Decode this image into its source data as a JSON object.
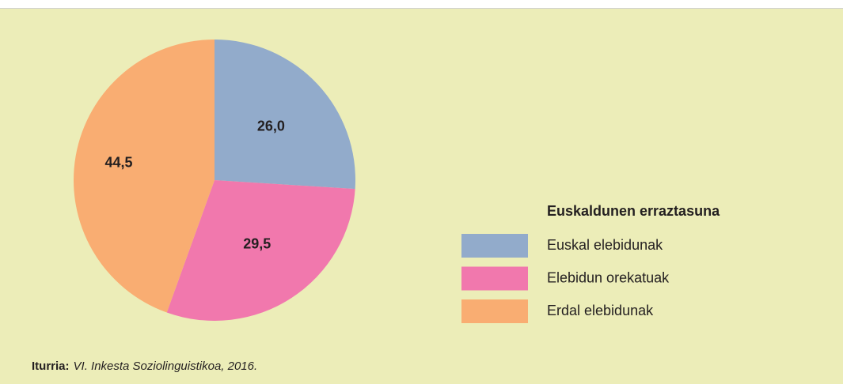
{
  "chart_data": {
    "type": "pie",
    "categories": [
      "Euskal elebidunak",
      "Elebidun orekatuak",
      "Erdal elebidunak"
    ],
    "values": [
      26.0,
      29.5,
      44.5
    ],
    "value_labels": [
      "26,0",
      "29,5",
      "44,5"
    ],
    "colors": [
      "#92abcb",
      "#f178ad",
      "#f9ad72"
    ],
    "legend_title": "Euskaldunen erraztasuna",
    "source_label": "Iturria:",
    "source": "VI. Inkesta Soziolinguistikoa, 2016."
  }
}
